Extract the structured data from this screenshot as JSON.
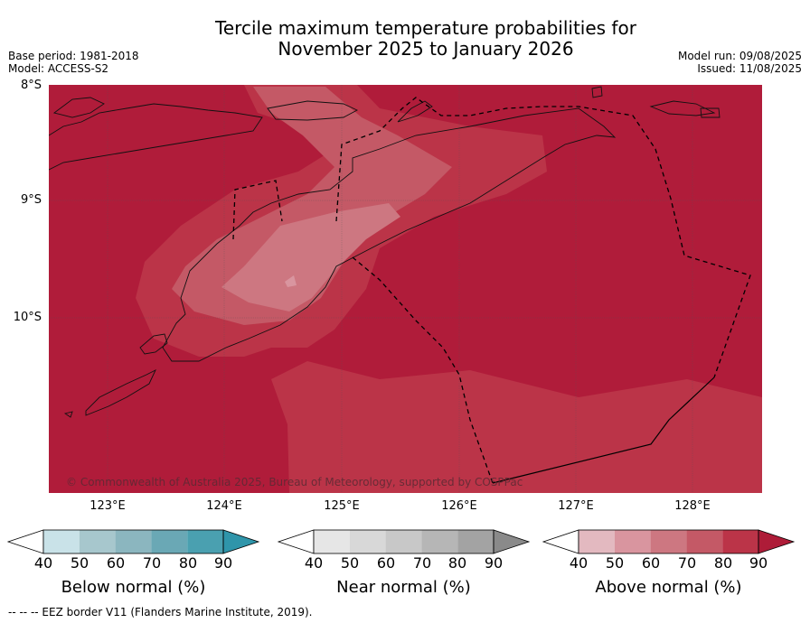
{
  "title": {
    "line1": "Tercile maximum temperature probabilities for",
    "line2": "November 2025 to January 2026"
  },
  "meta": {
    "base_period": "Base period: 1981-2018",
    "model": "Model: ACCESS-S2",
    "model_run": "Model run: 09/08/2025",
    "issued": "Issued: 11/08/2025"
  },
  "map": {
    "lat_labels": [
      "8°S",
      "9°S",
      "10°S"
    ],
    "lon_labels": [
      "123°E",
      "124°E",
      "125°E",
      "126°E",
      "127°E",
      "128°E"
    ],
    "copyright": "© Commonwealth of Australia 2025, Bureau of Meteorology, supported by COSPPac"
  },
  "colorbars": [
    {
      "label": "Below normal (%)",
      "ticks": [
        "40",
        "50",
        "60",
        "70",
        "80",
        "90"
      ],
      "colors": [
        "#ffffff",
        "#c9e2e8",
        "#a7c7cd",
        "#8bb6bf",
        "#6aa8b5",
        "#4aa0b0",
        "#2f95aa"
      ]
    },
    {
      "label": "Near normal (%)",
      "ticks": [
        "40",
        "50",
        "60",
        "70",
        "80",
        "90"
      ],
      "colors": [
        "#ffffff",
        "#e6e6e6",
        "#d8d8d8",
        "#c8c8c8",
        "#b6b6b6",
        "#a3a3a3",
        "#8a8a8a"
      ]
    },
    {
      "label": "Above normal (%)",
      "ticks": [
        "40",
        "50",
        "60",
        "70",
        "80",
        "90"
      ],
      "colors": [
        "#ffffff",
        "#e3b9c0",
        "#d9959f",
        "#cd7781",
        "#c45966",
        "#bb3448",
        "#ae1c38"
      ]
    }
  ],
  "footer": "-- -- -- EEZ border V11 (Flanders Marine Institute, 2019)."
}
